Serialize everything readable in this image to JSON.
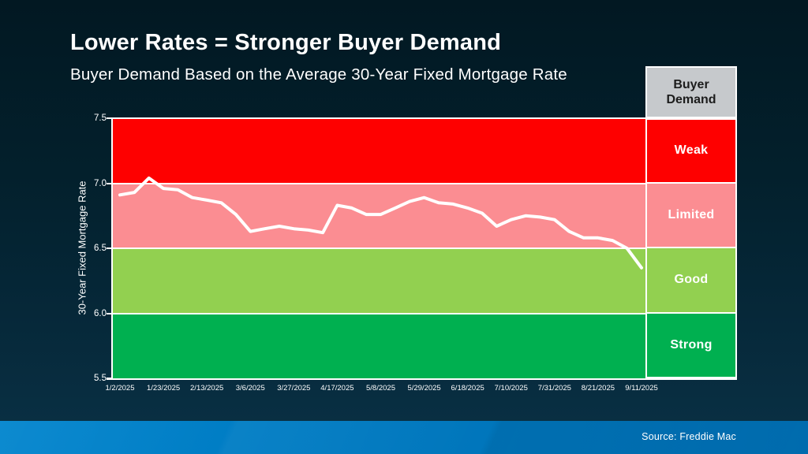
{
  "title": "Lower Rates = Stronger Buyer Demand",
  "subtitle": "Buyer Demand Based on the Average 30-Year Fixed Mortgage Rate",
  "source": "Source: Freddie Mac",
  "colors": {
    "background_top": "#021822",
    "background_bottom": "#0a3145",
    "line": "#ffffff",
    "axis": "#ffffff",
    "legend_header_bg": "#c6c9cc",
    "legend_header_text": "#1c1c1c",
    "footer_bar": "#0077bd"
  },
  "legend": {
    "header": "Buyer Demand",
    "bands": [
      {
        "label": "Weak",
        "color": "#fe0000",
        "range": [
          7.0,
          7.5
        ]
      },
      {
        "label": "Limited",
        "color": "#fb8d92",
        "range": [
          6.5,
          7.0
        ]
      },
      {
        "label": "Good",
        "color": "#92d050",
        "range": [
          6.0,
          6.5
        ]
      },
      {
        "label": "Strong",
        "color": "#00b050",
        "range": [
          5.5,
          6.0
        ]
      }
    ]
  },
  "chart_data": {
    "type": "line",
    "title": "Buyer Demand Based on the Average 30-Year Fixed Mortgage Rate",
    "xlabel": "",
    "ylabel": "30-Year Fixed Mortgage Rate",
    "ylim": [
      5.5,
      7.5
    ],
    "grid": false,
    "legend_position": "right",
    "ytick_labels": [
      "7.5",
      "7.0",
      "6.5",
      "6.0",
      "5.5"
    ],
    "xtick_labels": [
      "1/2/2025",
      "1/23/2025",
      "2/13/2025",
      "3/6/2025",
      "3/27/2025",
      "4/17/2025",
      "5/8/2025",
      "5/29/2025",
      "6/18/2025",
      "7/10/2025",
      "7/31/2025",
      "8/21/2025",
      "9/11/2025"
    ],
    "xtick_every": 3,
    "x": [
      "1/2/2025",
      "1/9/2025",
      "1/16/2025",
      "1/23/2025",
      "1/30/2025",
      "2/6/2025",
      "2/13/2025",
      "2/20/2025",
      "2/27/2025",
      "3/6/2025",
      "3/13/2025",
      "3/20/2025",
      "3/27/2025",
      "4/3/2025",
      "4/10/2025",
      "4/17/2025",
      "4/24/2025",
      "5/1/2025",
      "5/8/2025",
      "5/15/2025",
      "5/22/2025",
      "5/29/2025",
      "6/5/2025",
      "6/12/2025",
      "6/18/2025",
      "6/26/2025",
      "7/3/2025",
      "7/10/2025",
      "7/17/2025",
      "7/24/2025",
      "7/31/2025",
      "8/7/2025",
      "8/14/2025",
      "8/21/2025",
      "8/28/2025",
      "9/4/2025",
      "9/11/2025"
    ],
    "series": [
      {
        "name": "30-Year Fixed Mortgage Rate",
        "values": [
          6.91,
          6.93,
          7.04,
          6.96,
          6.95,
          6.89,
          6.87,
          6.85,
          6.76,
          6.63,
          6.65,
          6.67,
          6.65,
          6.64,
          6.62,
          6.83,
          6.81,
          6.76,
          6.76,
          6.81,
          6.86,
          6.89,
          6.85,
          6.84,
          6.81,
          6.77,
          6.67,
          6.72,
          6.75,
          6.74,
          6.72,
          6.63,
          6.58,
          6.58,
          6.56,
          6.5,
          6.35
        ]
      }
    ]
  }
}
